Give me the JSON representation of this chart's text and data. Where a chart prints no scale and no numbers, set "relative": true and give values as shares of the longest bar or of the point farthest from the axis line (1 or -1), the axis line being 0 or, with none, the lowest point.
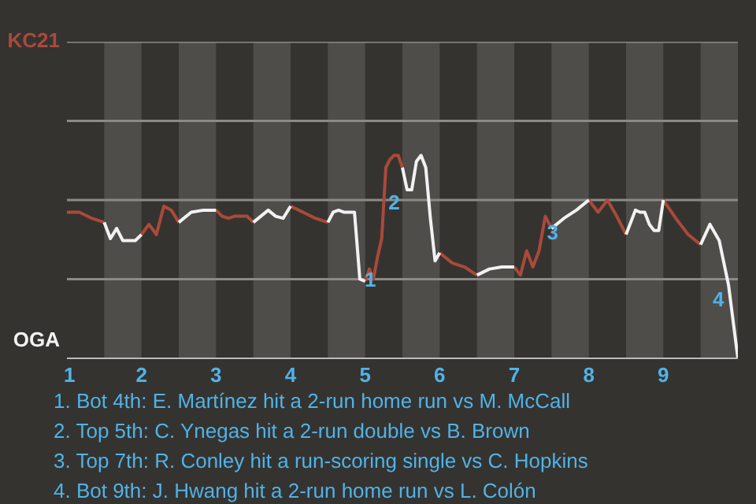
{
  "chart_data": {
    "type": "line",
    "relative": true,
    "xlim": [
      1,
      10
    ],
    "xticks": [
      1,
      2,
      3,
      4,
      5,
      6,
      7,
      8,
      9
    ],
    "marker": "none",
    "line_style": "solid",
    "ref_lines": [
      {
        "axis": "y",
        "value": 0.39,
        "color": "#8c8a87"
      },
      {
        "axis": "y",
        "value": 0.78,
        "color": "#8c8a87"
      },
      {
        "axis": "y",
        "value": 1.17,
        "color": "#8c8a87"
      },
      {
        "axis": "y",
        "value": 1.56,
        "color": "#8c8a87"
      }
    ],
    "bands": [
      {
        "axis": "x",
        "from": 1.5,
        "to": 2,
        "color": "#4f4d4a"
      },
      {
        "axis": "x",
        "from": 2.5,
        "to": 3,
        "color": "#4f4d4a"
      },
      {
        "axis": "x",
        "from": 3.5,
        "to": 4,
        "color": "#4f4d4a"
      },
      {
        "axis": "x",
        "from": 4.5,
        "to": 5,
        "color": "#4f4d4a"
      },
      {
        "axis": "x",
        "from": 5.5,
        "to": 6,
        "color": "#4f4d4a"
      },
      {
        "axis": "x",
        "from": 6.5,
        "to": 7,
        "color": "#4f4d4a"
      },
      {
        "axis": "x",
        "from": 7.5,
        "to": 8,
        "color": "#4f4d4a"
      },
      {
        "axis": "x",
        "from": 8.5,
        "to": 9,
        "color": "#4f4d4a"
      },
      {
        "axis": "x",
        "from": 9.5,
        "to": 10,
        "color": "#4f4d4a"
      }
    ],
    "series": [
      {
        "name": "KC21",
        "color": "#a94a3a",
        "x": [
          1,
          1.167,
          1.333,
          1.5,
          1.75,
          2,
          2.1,
          2.2,
          2.3,
          2.4,
          2.5,
          2.75,
          3,
          3.083,
          3.167,
          3.25,
          3.333,
          3.417,
          3.5,
          3.75,
          4,
          4.167,
          4.333,
          4.5,
          4.75,
          5,
          5.056,
          5.111,
          5.167,
          5.222,
          5.278,
          5.333,
          5.389,
          5.444,
          5.5,
          5.75,
          6,
          6.167,
          6.333,
          6.5,
          6.75,
          7,
          7.083,
          7.167,
          7.25,
          7.333,
          7.417,
          7.5,
          7.75,
          8,
          8.125,
          8.25,
          8.375,
          8.5,
          8.75,
          9,
          9.167,
          9.333,
          9.5
        ],
        "values": [
          0.72,
          0.72,
          0.69,
          0.67,
          null,
          0.61,
          0.66,
          0.61,
          0.75,
          0.73,
          0.67,
          null,
          0.73,
          0.7,
          0.69,
          0.7,
          0.7,
          0.7,
          0.67,
          null,
          0.75,
          0.72,
          0.69,
          0.67,
          null,
          0.38,
          0.44,
          0.39,
          0.5,
          0.59,
          0.94,
          0.98,
          1,
          1,
          0.94,
          null,
          0.52,
          0.47,
          0.45,
          0.41,
          null,
          0.45,
          0.41,
          0.53,
          0.45,
          0.53,
          0.7,
          0.64,
          null,
          0.78,
          0.72,
          0.78,
          0.7,
          0.61,
          null,
          0.78,
          0.69,
          0.61,
          0.56
        ]
      },
      {
        "name": "OGA",
        "color": "#f2f2f2",
        "x": [
          1.5,
          1.583,
          1.667,
          1.75,
          1.833,
          1.917,
          2,
          2.25,
          2.5,
          2.667,
          2.833,
          3,
          3.25,
          3.5,
          3.6,
          3.7,
          3.8,
          3.9,
          4,
          4.25,
          4.5,
          4.571,
          4.643,
          4.714,
          4.786,
          4.857,
          4.929,
          5,
          5.25,
          5.5,
          5.563,
          5.625,
          5.688,
          5.75,
          5.813,
          5.875,
          5.938,
          6,
          6.25,
          6.5,
          6.667,
          6.833,
          7,
          7.25,
          7.5,
          7.667,
          7.833,
          8,
          8.25,
          8.5,
          8.563,
          8.625,
          8.688,
          8.75,
          8.813,
          8.875,
          8.938,
          9,
          9.25,
          9.5,
          9.625,
          9.75,
          9.875,
          10
        ],
        "values": [
          0.67,
          0.59,
          0.64,
          0.58,
          0.58,
          0.58,
          0.61,
          null,
          0.67,
          0.72,
          0.73,
          0.73,
          null,
          0.67,
          0.7,
          0.73,
          0.7,
          0.69,
          0.75,
          null,
          0.67,
          0.72,
          0.73,
          0.72,
          0.72,
          0.72,
          0.39,
          0.38,
          null,
          0.94,
          0.83,
          0.83,
          0.97,
          1,
          0.94,
          0.69,
          0.48,
          0.52,
          null,
          0.41,
          0.44,
          0.45,
          0.45,
          null,
          0.64,
          0.69,
          0.73,
          0.78,
          null,
          0.61,
          0.67,
          0.73,
          0.72,
          0.72,
          0.66,
          0.63,
          0.63,
          0.78,
          null,
          0.56,
          0.66,
          0.58,
          0.36,
          0
        ]
      }
    ],
    "annotations": [
      {
        "text": "1",
        "x": 4.929,
        "y": 0.39
      },
      {
        "text": "2",
        "x": 5.25,
        "y": 0.77
      },
      {
        "text": "3",
        "x": 7.375,
        "y": 0.62
      },
      {
        "text": "4",
        "x": 9.9,
        "y": 0.29
      },
      "1. Bot 4th: E. Martínez hit a 2-run home run vs M. McCall",
      "2. Top 5th: C. Ynegas hit a 2-run double vs B. Brown",
      "3. Top 7th: R. Conley hit a run-scoring single vs C. Hopkins",
      "4. Bot 9th: J. Hwang hit a 2-run home run vs L. Colón"
    ]
  }
}
